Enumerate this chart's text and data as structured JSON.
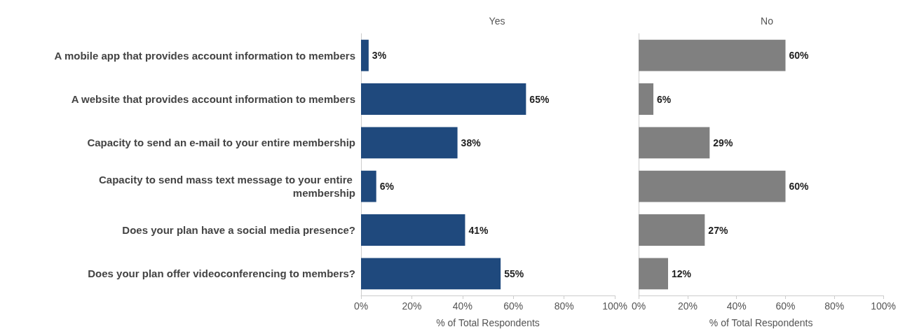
{
  "chart_data": [
    {
      "type": "bar",
      "orientation": "horizontal",
      "title": "Yes",
      "xlabel": "% of Total Respondents",
      "categories": [
        "A mobile app that provides account information to members",
        "A website that provides account information to members",
        "Capacity to send an e-mail to your entire membership",
        "Capacity to send mass text message to your entire membership",
        "Does your plan have a social media presence?",
        "Does your plan offer videoconferencing to members?"
      ],
      "series": [
        {
          "color": "#1f497d",
          "values": [
            3,
            65,
            38,
            6,
            41,
            55
          ],
          "value_labels": [
            "3%",
            "65%",
            "38%",
            "6%",
            "41%",
            "55%"
          ]
        }
      ],
      "xlim": [
        0,
        100
      ],
      "xticks": [
        {
          "value": 0,
          "label": "0%"
        },
        {
          "value": 20,
          "label": "20%"
        },
        {
          "value": 40,
          "label": "40%"
        },
        {
          "value": 60,
          "label": "60%"
        },
        {
          "value": 80,
          "label": "80%"
        },
        {
          "value": 100,
          "label": "100%"
        }
      ],
      "grid": false
    },
    {
      "type": "bar",
      "orientation": "horizontal",
      "title": "No",
      "xlabel": "% of Total Respondents",
      "categories": [
        null,
        null,
        null,
        null,
        null,
        null
      ],
      "series": [
        {
          "color": "#808080",
          "values": [
            60,
            6,
            29,
            60,
            27,
            12
          ],
          "value_labels": [
            "60%",
            "6%",
            "29%",
            "60%",
            "27%",
            "12%"
          ]
        }
      ],
      "xlim": [
        0,
        100
      ],
      "xticks": [
        {
          "value": 0,
          "label": "0%"
        },
        {
          "value": 20,
          "label": "20%"
        },
        {
          "value": 40,
          "label": "40%"
        },
        {
          "value": 60,
          "label": "60%"
        },
        {
          "value": 80,
          "label": "80%"
        },
        {
          "value": 100,
          "label": "100%"
        }
      ],
      "grid": false,
      "tick_labels": "x"
    }
  ]
}
